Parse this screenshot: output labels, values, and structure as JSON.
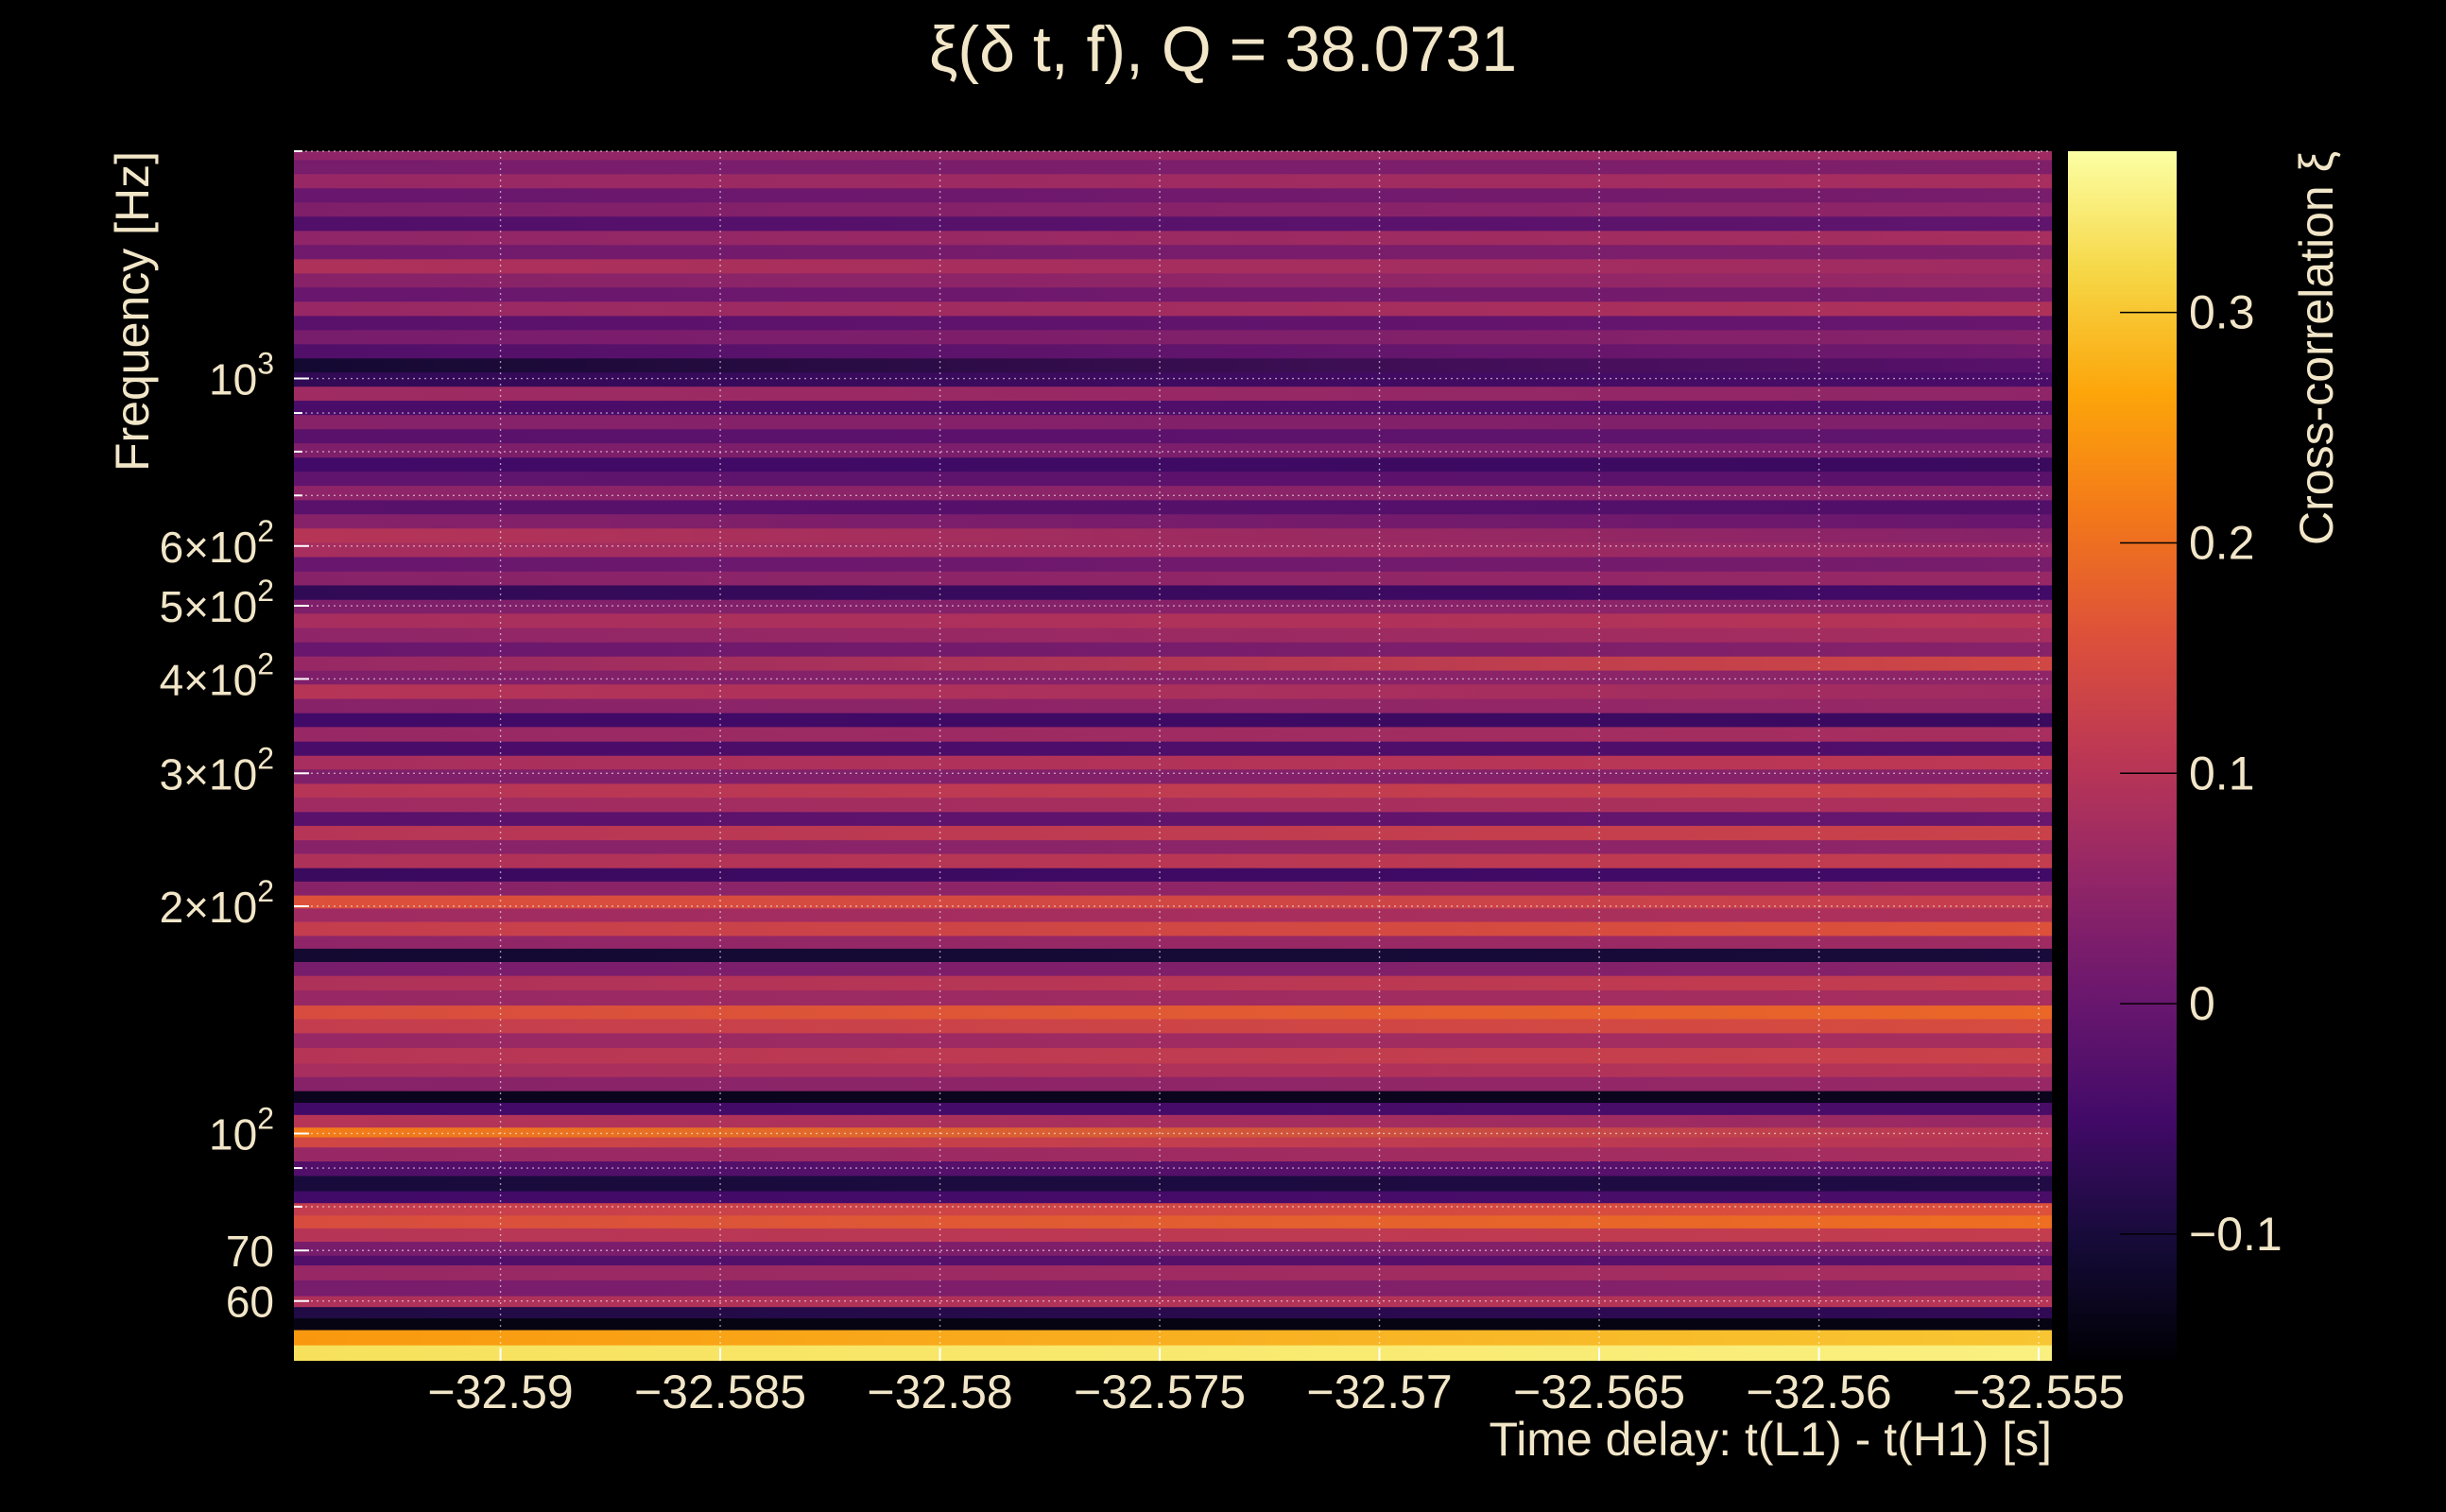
{
  "chart_data": {
    "type": "heatmap",
    "title": "ξ(δ t, f), Q = 38.0731",
    "xlabel": "Time delay: t(L1) - t(H1) [s]",
    "ylabel": "Frequency [Hz]",
    "colorbar_label": "Cross-correlation ξ",
    "y_scale": "log",
    "xlim": [
      -32.5947,
      -32.5547
    ],
    "ylim": [
      50,
      2000
    ],
    "x_ticks": [
      -32.59,
      -32.585,
      -32.58,
      -32.575,
      -32.57,
      -32.565,
      -32.56,
      -32.555
    ],
    "x_tick_labels": [
      "−32.59",
      "−32.585",
      "−32.58",
      "−32.575",
      "−32.57",
      "−32.565",
      "−32.56",
      "−32.555"
    ],
    "y_ticks": [
      {
        "value": 60,
        "label": "60"
      },
      {
        "value": 70,
        "label": "70"
      },
      {
        "value": 100,
        "label": "10",
        "exp": "2"
      },
      {
        "value": 200,
        "label": "2×10",
        "exp": "2"
      },
      {
        "value": 300,
        "label": "3×10",
        "exp": "2"
      },
      {
        "value": 400,
        "label": "4×10",
        "exp": "2"
      },
      {
        "value": 500,
        "label": "5×10",
        "exp": "2"
      },
      {
        "value": 600,
        "label": "6×10",
        "exp": "2"
      },
      {
        "value": 1000,
        "label": "10",
        "exp": "3"
      }
    ],
    "y_grid": [
      60,
      70,
      80,
      90,
      100,
      200,
      300,
      400,
      500,
      600,
      700,
      800,
      900,
      1000,
      2000
    ],
    "colorbar": {
      "vmin": -0.155,
      "vmax": 0.37,
      "colormap": "inferno",
      "ticks": [
        -0.1,
        0,
        0.1,
        0.2,
        0.3
      ],
      "tick_labels": [
        "−0.1",
        "0",
        "0.1",
        "0.2",
        "0.3"
      ]
    },
    "bands": [
      {
        "f": [
          50,
          52.5
        ],
        "v": [
          0.33,
          0.35
        ]
      },
      {
        "f": [
          52.5,
          55
        ],
        "v": [
          0.25,
          0.3
        ]
      },
      {
        "f": [
          55,
          57
        ],
        "v": [
          -0.14,
          -0.14
        ]
      },
      {
        "f": [
          57,
          59
        ],
        "v": [
          -0.09,
          -0.07
        ]
      },
      {
        "f": [
          59,
          61
        ],
        "v": [
          0.09,
          0.1
        ]
      },
      {
        "f": [
          61,
          64
        ],
        "v": [
          0.02,
          0.04
        ]
      },
      {
        "f": [
          64,
          67
        ],
        "v": [
          0.06,
          0.08
        ]
      },
      {
        "f": [
          67,
          69
        ],
        "v": [
          -0.03,
          -0.02
        ]
      },
      {
        "f": [
          69,
          72
        ],
        "v": [
          0.02,
          0.04
        ]
      },
      {
        "f": [
          72,
          75
        ],
        "v": [
          0.1,
          0.12
        ]
      },
      {
        "f": [
          75,
          78
        ],
        "v": [
          0.15,
          0.2
        ]
      },
      {
        "f": [
          78,
          81
        ],
        "v": [
          0.12,
          0.16
        ]
      },
      {
        "f": [
          81,
          84
        ],
        "v": [
          -0.05,
          -0.04
        ]
      },
      {
        "f": [
          84,
          88
        ],
        "v": [
          -0.1,
          -0.09
        ]
      },
      {
        "f": [
          88,
          92
        ],
        "v": [
          -0.03,
          -0.02
        ]
      },
      {
        "f": [
          92,
          96
        ],
        "v": [
          0.06,
          0.08
        ]
      },
      {
        "f": [
          96,
          99
        ],
        "v": [
          0.14,
          0.1
        ]
      },
      {
        "f": [
          99,
          102
        ],
        "v": [
          0.22,
          0.1
        ]
      },
      {
        "f": [
          102,
          106
        ],
        "v": [
          0.1,
          0.06
        ]
      },
      {
        "f": [
          106,
          110
        ],
        "v": [
          -0.05,
          -0.04
        ]
      },
      {
        "f": [
          110,
          114
        ],
        "v": [
          -0.13,
          -0.13
        ]
      },
      {
        "f": [
          114,
          119
        ],
        "v": [
          0.04,
          0.06
        ]
      },
      {
        "f": [
          119,
          124
        ],
        "v": [
          0.08,
          0.1
        ]
      },
      {
        "f": [
          124,
          130
        ],
        "v": [
          0.1,
          0.13
        ]
      },
      {
        "f": [
          130,
          136
        ],
        "v": [
          0.06,
          0.08
        ]
      },
      {
        "f": [
          136,
          142
        ],
        "v": [
          0.12,
          0.15
        ]
      },
      {
        "f": [
          142,
          148
        ],
        "v": [
          0.15,
          0.19
        ]
      },
      {
        "f": [
          148,
          155
        ],
        "v": [
          0.06,
          0.08
        ]
      },
      {
        "f": [
          155,
          162
        ],
        "v": [
          0.09,
          0.12
        ]
      },
      {
        "f": [
          162,
          169
        ],
        "v": [
          0.02,
          0.04
        ]
      },
      {
        "f": [
          169,
          176
        ],
        "v": [
          -0.11,
          -0.1
        ]
      },
      {
        "f": [
          176,
          183
        ],
        "v": [
          0.05,
          0.07
        ]
      },
      {
        "f": [
          183,
          191
        ],
        "v": [
          0.12,
          0.16
        ]
      },
      {
        "f": [
          191,
          199
        ],
        "v": [
          0.07,
          0.09
        ]
      },
      {
        "f": [
          199,
          207
        ],
        "v": [
          0.16,
          0.12
        ]
      },
      {
        "f": [
          207,
          216
        ],
        "v": [
          0.04,
          0.06
        ]
      },
      {
        "f": [
          216,
          225
        ],
        "v": [
          -0.06,
          -0.05
        ]
      },
      {
        "f": [
          225,
          235
        ],
        "v": [
          0.09,
          0.12
        ]
      },
      {
        "f": [
          235,
          245
        ],
        "v": [
          0.04,
          0.05
        ]
      },
      {
        "f": [
          245,
          256
        ],
        "v": [
          0.1,
          0.13
        ]
      },
      {
        "f": [
          256,
          267
        ],
        "v": [
          -0.02,
          0.0
        ]
      },
      {
        "f": [
          267,
          279
        ],
        "v": [
          0.07,
          0.09
        ]
      },
      {
        "f": [
          279,
          291
        ],
        "v": [
          0.1,
          0.13
        ]
      },
      {
        "f": [
          291,
          304
        ],
        "v": [
          0.03,
          0.04
        ]
      },
      {
        "f": [
          304,
          317
        ],
        "v": [
          0.08,
          0.11
        ]
      },
      {
        "f": [
          317,
          331
        ],
        "v": [
          -0.04,
          -0.03
        ]
      },
      {
        "f": [
          331,
          346
        ],
        "v": [
          0.06,
          0.08
        ]
      },
      {
        "f": [
          346,
          361
        ],
        "v": [
          -0.05,
          -0.06
        ]
      },
      {
        "f": [
          361,
          377
        ],
        "v": [
          0.04,
          0.06
        ]
      },
      {
        "f": [
          377,
          394
        ],
        "v": [
          0.1,
          0.07
        ]
      },
      {
        "f": [
          394,
          411
        ],
        "v": [
          0.03,
          0.05
        ]
      },
      {
        "f": [
          411,
          429
        ],
        "v": [
          0.06,
          0.14
        ]
      },
      {
        "f": [
          429,
          448
        ],
        "v": [
          0.0,
          0.04
        ]
      },
      {
        "f": [
          448,
          468
        ],
        "v": [
          0.05,
          0.08
        ]
      },
      {
        "f": [
          468,
          489
        ],
        "v": [
          0.08,
          0.1
        ]
      },
      {
        "f": [
          489,
          510
        ],
        "v": [
          0.03,
          0.05
        ]
      },
      {
        "f": [
          510,
          533
        ],
        "v": [
          -0.07,
          -0.05
        ]
      },
      {
        "f": [
          533,
          556
        ],
        "v": [
          0.04,
          0.06
        ]
      },
      {
        "f": [
          556,
          581
        ],
        "v": [
          0.0,
          0.02
        ]
      },
      {
        "f": [
          581,
          607
        ],
        "v": [
          0.08,
          0.06
        ]
      },
      {
        "f": [
          607,
          634
        ],
        "v": [
          0.1,
          0.04
        ]
      },
      {
        "f": [
          634,
          662
        ],
        "v": [
          0.04,
          0.0
        ]
      },
      {
        "f": [
          662,
          691
        ],
        "v": [
          -0.02,
          -0.03
        ]
      },
      {
        "f": [
          691,
          722
        ],
        "v": [
          0.05,
          0.04
        ]
      },
      {
        "f": [
          722,
          754
        ],
        "v": [
          -0.01,
          -0.02
        ]
      },
      {
        "f": [
          754,
          787
        ],
        "v": [
          -0.05,
          -0.06
        ]
      },
      {
        "f": [
          787,
          822
        ],
        "v": [
          0.03,
          0.02
        ]
      },
      {
        "f": [
          822,
          858
        ],
        "v": [
          -0.02,
          -0.01
        ]
      },
      {
        "f": [
          858,
          896
        ],
        "v": [
          0.04,
          0.03
        ]
      },
      {
        "f": [
          896,
          936
        ],
        "v": [
          -0.04,
          -0.03
        ]
      },
      {
        "f": [
          936,
          977
        ],
        "v": [
          0.07,
          0.05
        ]
      },
      {
        "f": [
          977,
          1020
        ],
        "v": [
          -0.07,
          -0.04
        ]
      },
      {
        "f": [
          1020,
          1065
        ],
        "v": [
          -0.11,
          -0.02
        ]
      },
      {
        "f": [
          1065,
          1112
        ],
        "v": [
          -0.03,
          0.01
        ]
      },
      {
        "f": [
          1112,
          1161
        ],
        "v": [
          0.02,
          0.04
        ]
      },
      {
        "f": [
          1161,
          1212
        ],
        "v": [
          -0.02,
          0.0
        ]
      },
      {
        "f": [
          1212,
          1266
        ],
        "v": [
          0.06,
          0.09
        ]
      },
      {
        "f": [
          1266,
          1322
        ],
        "v": [
          0.0,
          0.02
        ]
      },
      {
        "f": [
          1322,
          1380
        ],
        "v": [
          0.04,
          0.06
        ]
      },
      {
        "f": [
          1380,
          1441
        ],
        "v": [
          0.09,
          0.07
        ]
      },
      {
        "f": [
          1441,
          1505
        ],
        "v": [
          0.01,
          0.03
        ]
      },
      {
        "f": [
          1505,
          1571
        ],
        "v": [
          0.05,
          0.08
        ]
      },
      {
        "f": [
          1571,
          1641
        ],
        "v": [
          -0.03,
          -0.01
        ]
      },
      {
        "f": [
          1641,
          1713
        ],
        "v": [
          0.03,
          0.05
        ]
      },
      {
        "f": [
          1713,
          1789
        ],
        "v": [
          0.0,
          0.02
        ]
      },
      {
        "f": [
          1789,
          1868
        ],
        "v": [
          0.06,
          0.08
        ]
      },
      {
        "f": [
          1868,
          1950
        ],
        "v": [
          0.02,
          0.03
        ]
      },
      {
        "f": [
          1950,
          2000
        ],
        "v": [
          0.05,
          0.07
        ]
      }
    ]
  }
}
